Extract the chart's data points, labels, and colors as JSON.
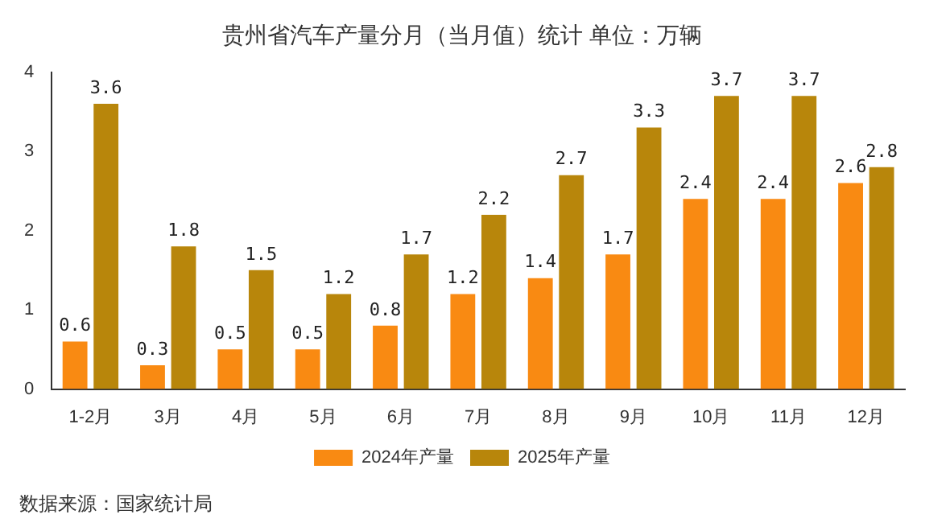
{
  "chart_data": {
    "type": "bar",
    "title": "贵州省汽车产量分月（当月值）统计 单位：万辆",
    "categories": [
      "1-2月",
      "3月",
      "4月",
      "5月",
      "6月",
      "7月",
      "8月",
      "9月",
      "10月",
      "11月",
      "12月"
    ],
    "series": [
      {
        "name": "2024年产量",
        "color": "#f98a12",
        "values": [
          0.6,
          0.3,
          0.5,
          0.5,
          0.8,
          1.2,
          1.4,
          1.7,
          2.4,
          2.4,
          2.6
        ]
      },
      {
        "name": "2025年产量",
        "color": "#b8860b",
        "values": [
          3.6,
          1.8,
          1.5,
          1.2,
          1.7,
          2.2,
          2.7,
          3.3,
          3.7,
          3.7,
          2.8
        ]
      }
    ],
    "ylim": [
      0,
      4
    ],
    "yticks": [
      0,
      1,
      2,
      3,
      4
    ],
    "grid": false,
    "legend": "bottom",
    "data_labels": true,
    "annotations": [
      "数据来源：国家统计局"
    ]
  }
}
